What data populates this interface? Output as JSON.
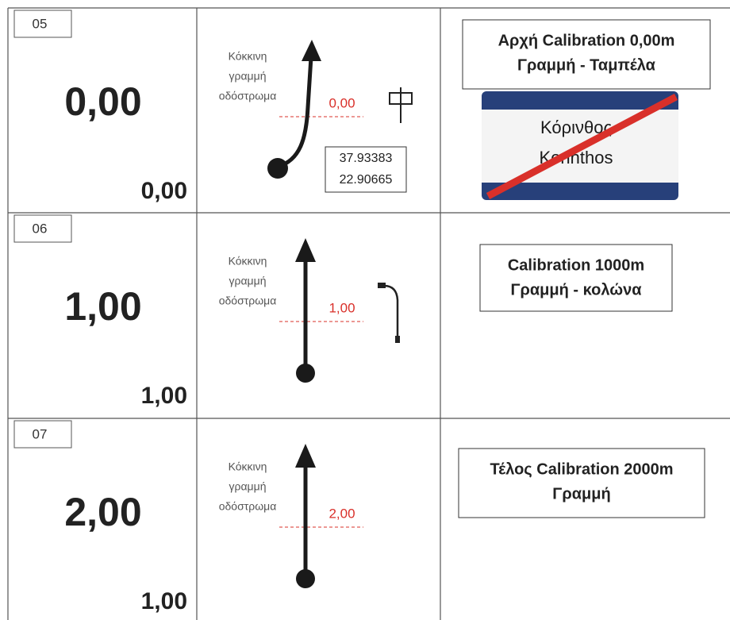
{
  "rows": [
    {
      "id": "05",
      "total": "0,00",
      "partial": "0,00",
      "note": [
        "Κόκκινη",
        "γραμμή",
        "οδόστρωμα"
      ],
      "marker": "0,00",
      "coords": [
        "37.93383",
        "22.90665"
      ],
      "instruction": [
        "Αρχή Calibration 0,00m",
        "Γραμμή - Ταμπέλα"
      ],
      "sign": [
        "Κόρινθος",
        "Korinthos"
      ]
    },
    {
      "id": "06",
      "total": "1,00",
      "partial": "1,00",
      "note": [
        "Κόκκινη",
        "γραμμή",
        "οδόστρωμα"
      ],
      "marker": "1,00",
      "instruction": [
        "Calibration 1000m",
        "Γραμμή - κολώνα"
      ]
    },
    {
      "id": "07",
      "total": "2,00",
      "partial": "1,00",
      "note": [
        "Κόκκινη",
        "γραμμή",
        "οδόστρωμα"
      ],
      "marker": "2,00",
      "instruction": [
        "Τέλος Calibration 2000m",
        "Γραμμή"
      ]
    }
  ]
}
